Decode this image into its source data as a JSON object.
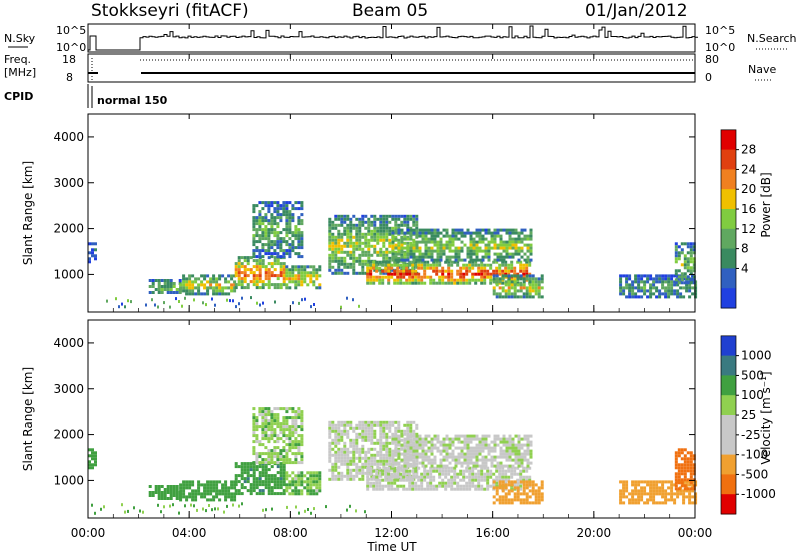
{
  "header": {
    "station": "Stokkseyri (fitACF)",
    "beam": "Beam 05",
    "date": "01/Jan/2012"
  },
  "nsky_panel": {
    "left_label": "N.Sky",
    "left_ticks": [
      "10^5",
      "10^0"
    ],
    "right_label": "N.Search",
    "right_ticks": [
      "10^5",
      "10^0"
    ]
  },
  "freq_panel": {
    "left_label_line1": "Freq.",
    "left_label_line2": "[MHz]",
    "left_ticks": [
      "18",
      "8"
    ],
    "right_label": "Nave",
    "right_ticks": [
      "80",
      "0"
    ]
  },
  "cpid_panel": {
    "label": "CPID",
    "mode_text": "normal 150"
  },
  "power_panel": {
    "ylabel": "Slant Range [km]",
    "yticks": [
      "4000",
      "3000",
      "2000",
      "1000"
    ],
    "colorbar_label": "Power [dB]",
    "colorbar_ticks": [
      "28",
      "24",
      "20",
      "16",
      "12",
      "8",
      "4"
    ],
    "colors": [
      "#2040e0",
      "#3060c0",
      "#3a8a60",
      "#60a860",
      "#80cc40",
      "#f0c000",
      "#f08020",
      "#e04010",
      "#e00000"
    ]
  },
  "velocity_panel": {
    "ylabel": "Slant Range [km]",
    "yticks": [
      "4000",
      "3000",
      "2000",
      "1000"
    ],
    "colorbar_label": "Velocity [m s⁻¹]",
    "colorbar_ticks": [
      "1000",
      "500",
      "100",
      "25",
      "-25",
      "-100",
      "-500",
      "-1000"
    ],
    "colors": [
      "#2040d0",
      "#3a7a80",
      "#40a040",
      "#90d050",
      "#c8c8c8",
      "#c8c8c8",
      "#f0a030",
      "#f07010",
      "#e00000"
    ]
  },
  "xaxis": {
    "ticks": [
      "00:00",
      "04:00",
      "08:00",
      "12:00",
      "16:00",
      "20:00",
      "00:00"
    ],
    "label": "Time UT"
  },
  "chart_data": {
    "type": "heatmap",
    "title": "Stokkseyri (fitACF)",
    "subtitle": "Beam 05",
    "xlabel": "Time UT",
    "ylabel": "Slant Range [km]",
    "x_range_hours": [
      0,
      24
    ],
    "ylim": [
      180,
      4500
    ],
    "panels": [
      "Power [dB]",
      "Velocity [m s⁻¹]"
    ],
    "power_scale": [
      0,
      30
    ],
    "velocity_scale": [
      -1000,
      1000
    ],
    "regions": [
      {
        "t_start": 0.0,
        "t_end": 0.3,
        "r_min": 1300,
        "r_max": 1700,
        "power": 6,
        "velocity": 200
      },
      {
        "t_start": 2.4,
        "t_end": 3.6,
        "r_min": 600,
        "r_max": 900,
        "power": 14,
        "velocity": 300
      },
      {
        "t_start": 3.6,
        "t_end": 5.8,
        "r_min": 600,
        "r_max": 1000,
        "power": 18,
        "velocity": 250
      },
      {
        "t_start": 5.8,
        "t_end": 7.8,
        "r_min": 700,
        "r_max": 1400,
        "power": 24,
        "velocity": 450
      },
      {
        "t_start": 6.5,
        "t_end": 8.5,
        "r_min": 1400,
        "r_max": 2600,
        "power": 12,
        "velocity": 60
      },
      {
        "t_start": 7.8,
        "t_end": 9.2,
        "r_min": 700,
        "r_max": 1200,
        "power": 20,
        "velocity": 80
      },
      {
        "t_start": 9.5,
        "t_end": 13.0,
        "r_min": 1000,
        "r_max": 2300,
        "power": 16,
        "velocity": 0
      },
      {
        "t_start": 11.0,
        "t_end": 17.5,
        "r_min": 800,
        "r_max": 1300,
        "power": 26,
        "velocity": 0
      },
      {
        "t_start": 12.0,
        "t_end": 17.5,
        "r_min": 1300,
        "r_max": 2000,
        "power": 16,
        "velocity": 0
      },
      {
        "t_start": 16.0,
        "t_end": 18.0,
        "r_min": 500,
        "r_max": 1000,
        "power": 18,
        "velocity": -250
      },
      {
        "t_start": 21.0,
        "t_end": 24.0,
        "r_min": 500,
        "r_max": 1000,
        "power": 10,
        "velocity": -220
      },
      {
        "t_start": 23.2,
        "t_end": 24.0,
        "r_min": 800,
        "r_max": 1700,
        "power": 14,
        "velocity": -700
      }
    ]
  }
}
